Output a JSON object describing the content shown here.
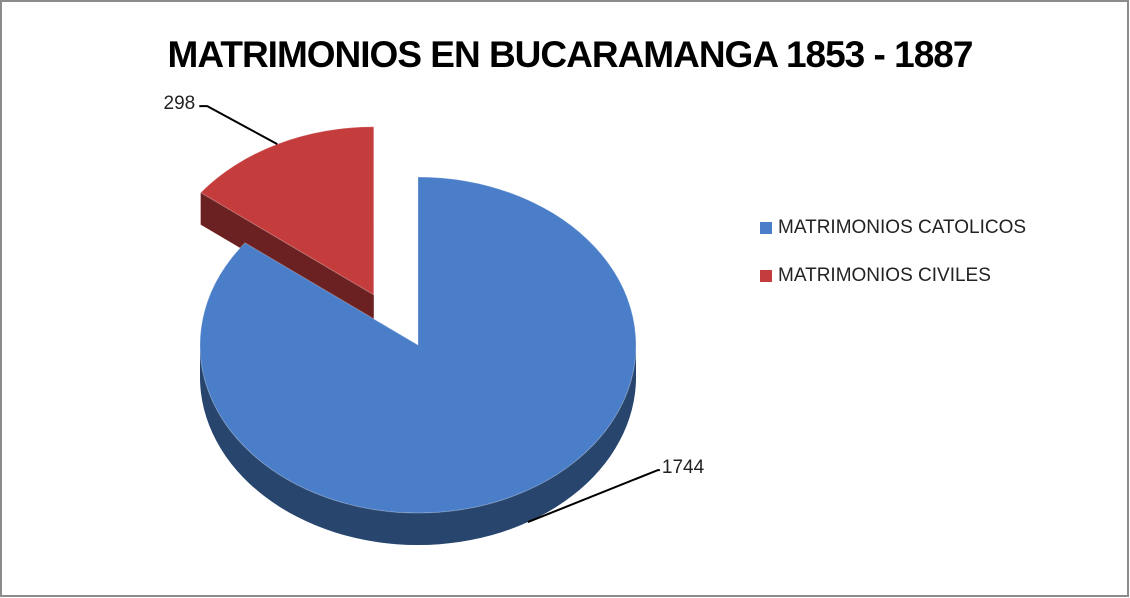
{
  "chart_data": {
    "type": "pie",
    "title": "MATRIMONIOS EN BUCARAMANGA 1853 - 1887",
    "categories": [
      "MATRIMONIOS CATOLICOS",
      "MATRIMONIOS CIVILES"
    ],
    "values": [
      1744,
      298
    ],
    "colors": [
      "#4a7ec8",
      "#c43c3c"
    ],
    "legend": "right"
  }
}
